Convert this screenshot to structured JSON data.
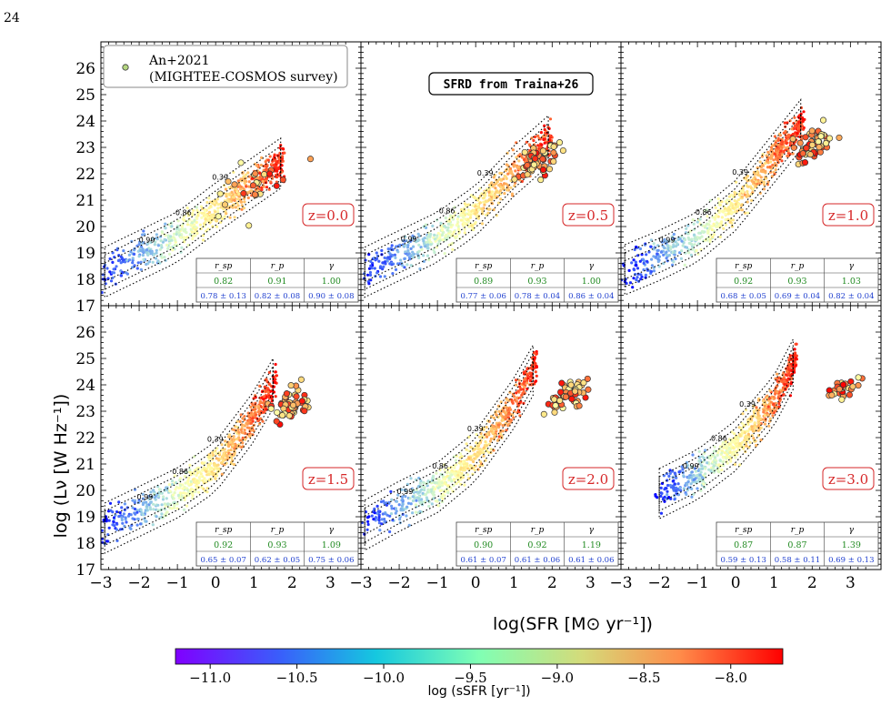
{
  "page_number": "24",
  "figure": {
    "xlabel": "log(SFR [M⊙ yr⁻¹])",
    "ylabel": "log (Lν [W Hz⁻¹])",
    "title_box": "SFRD from Traina+26",
    "legend": {
      "marker_label": "An+2021",
      "marker_sublabel": "(MIGHTEE-COSMOS survey)",
      "placement": "top-left"
    },
    "colorbar": {
      "label": "log (sSFR [yr⁻¹])",
      "range": [
        -11.2,
        -7.7
      ],
      "ticks": [
        "−11.0",
        "−10.5",
        "−10.0",
        "−9.5",
        "−9.0",
        "−8.5",
        "−8.0"
      ],
      "tick_values": [
        -11.0,
        -10.5,
        -10.0,
        -9.5,
        -9.0,
        -8.5,
        -8.0
      ],
      "colormap": "rainbow"
    },
    "stats_headers": [
      "r_sp",
      "r_p",
      "γ"
    ],
    "contour_levels": [
      "0.39",
      "0.86",
      "0.99"
    ],
    "colors": {
      "redshift_label": "#d62728",
      "stats_row1": "#228b22",
      "stats_row2": "#1f3fcf",
      "contour": "#000000",
      "observed_marker_face": "#b5d681"
    }
  },
  "chart_data": {
    "type": "scatter",
    "title": "SFRD from Traina+26",
    "xlabel": "log(SFR [M⊙ yr⁻¹])",
    "ylabel": "log (Lν [W Hz⁻¹])",
    "xlim": [
      -3,
      3.8
    ],
    "ylim": [
      17,
      27
    ],
    "x_ticks": [
      "−3",
      "−2",
      "−1",
      "0",
      "1",
      "2",
      "3"
    ],
    "y_ticks": [
      "17",
      "18",
      "19",
      "20",
      "21",
      "22",
      "23",
      "24",
      "25",
      "26"
    ],
    "grid": false,
    "panels": [
      {
        "redshift": "z=0.0",
        "stats": {
          "r_sp": "0.82",
          "r_p": "0.91",
          "gamma": "1.00",
          "r_sp_err": "0.78 ± 0.13",
          "r_p_err": "0.82 ± 0.08",
          "gamma_err": "0.90 ± 0.08"
        },
        "sim_trend": [
          [
            -3,
            18.2
          ],
          [
            -2,
            18.9
          ],
          [
            -1,
            19.6
          ],
          [
            0,
            20.7
          ],
          [
            1,
            21.7
          ],
          [
            1.5,
            22.2
          ]
        ],
        "sim_xrange": [
          -3,
          1.8
        ],
        "obs_center": [
          1.1,
          21.6
        ],
        "obs_spread": [
          0.5,
          0.6
        ],
        "obs_count": 22
      },
      {
        "redshift": "z=0.5",
        "stats": {
          "r_sp": "0.89",
          "r_p": "0.93",
          "gamma": "1.00",
          "r_sp_err": "0.77 ± 0.06",
          "r_p_err": "0.78 ± 0.04",
          "gamma_err": "0.86 ± 0.04"
        },
        "sim_trend": [
          [
            -3,
            18.2
          ],
          [
            -2,
            18.9
          ],
          [
            -1,
            19.6
          ],
          [
            0,
            20.6
          ],
          [
            1,
            22.1
          ],
          [
            1.7,
            23.0
          ]
        ],
        "sim_xrange": [
          -3,
          2.0
        ],
        "obs_center": [
          1.6,
          22.5
        ],
        "obs_spread": [
          0.25,
          0.3
        ],
        "obs_count": 60
      },
      {
        "redshift": "z=1.0",
        "stats": {
          "r_sp": "0.92",
          "r_p": "0.93",
          "gamma": "1.03",
          "r_sp_err": "0.68 ± 0.05",
          "r_p_err": "0.69 ± 0.04",
          "gamma_err": "0.82 ± 0.04"
        },
        "sim_trend": [
          [
            -3,
            18.3
          ],
          [
            -2,
            18.9
          ],
          [
            -1,
            19.6
          ],
          [
            0,
            20.8
          ],
          [
            1,
            22.6
          ],
          [
            1.5,
            23.5
          ]
        ],
        "sim_xrange": [
          -3,
          1.8
        ],
        "obs_center": [
          2.0,
          23.1
        ],
        "obs_spread": [
          0.25,
          0.3
        ],
        "obs_count": 60
      },
      {
        "redshift": "z=1.5",
        "stats": {
          "r_sp": "0.92",
          "r_p": "0.93",
          "gamma": "1.09",
          "r_sp_err": "0.65 ± 0.07",
          "r_p_err": "0.62 ± 0.05",
          "gamma_err": "0.75 ± 0.06"
        },
        "sim_trend": [
          [
            -3,
            18.5
          ],
          [
            -2,
            19.2
          ],
          [
            -1,
            19.9
          ],
          [
            0,
            20.9
          ],
          [
            1,
            22.8
          ],
          [
            1.4,
            23.8
          ]
        ],
        "sim_xrange": [
          -3,
          1.6
        ],
        "obs_center": [
          2.0,
          23.3
        ],
        "obs_spread": [
          0.25,
          0.3
        ],
        "obs_count": 60
      },
      {
        "redshift": "z=2.0",
        "stats": {
          "r_sp": "0.90",
          "r_p": "0.92",
          "gamma": "1.19",
          "r_sp_err": "0.61 ± 0.07",
          "r_p_err": "0.61 ± 0.06",
          "gamma_err": "0.61 ± 0.06"
        },
        "sim_trend": [
          [
            -3,
            18.6
          ],
          [
            -2,
            19.4
          ],
          [
            -1,
            20.1
          ],
          [
            0,
            21.3
          ],
          [
            1,
            23.3
          ],
          [
            1.4,
            24.3
          ]
        ],
        "sim_xrange": [
          -3,
          1.6
        ],
        "obs_center": [
          2.4,
          23.6
        ],
        "obs_spread": [
          0.25,
          0.25
        ],
        "obs_count": 60
      },
      {
        "redshift": "z=3.0",
        "stats": {
          "r_sp": "0.87",
          "r_p": "0.87",
          "gamma": "1.39",
          "r_sp_err": "0.59 ± 0.13",
          "r_p_err": "0.58 ± 0.11",
          "gamma_err": "0.69 ± 0.13"
        },
        "sim_trend": [
          [
            -2.1,
            19.8
          ],
          [
            -1,
            20.6
          ],
          [
            0,
            21.7
          ],
          [
            1,
            23.4
          ],
          [
            1.4,
            24.5
          ]
        ],
        "sim_xrange": [
          -2.1,
          1.6
        ],
        "obs_center": [
          2.8,
          23.9
        ],
        "obs_spread": [
          0.2,
          0.2
        ],
        "obs_count": 30
      }
    ]
  }
}
